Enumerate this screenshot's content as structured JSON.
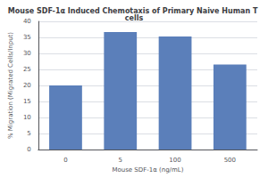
{
  "chart_data": {
    "type": "bar",
    "title": "Mouse SDF-1α Induced Chemotaxis of Primary Naive Human T cells",
    "xlabel": "Mouse SDF-1α (ng/mL)",
    "ylabel": "% Migration (Migrated Cells/Input)",
    "categories": [
      "0",
      "5",
      "100",
      "500"
    ],
    "values": [
      20.0,
      36.7,
      35.3,
      26.5
    ],
    "color": "#5b7fba",
    "ylim": [
      0,
      40
    ],
    "yticks": [
      0,
      5,
      10,
      15,
      20,
      25,
      30,
      35,
      40
    ],
    "grid": true
  }
}
